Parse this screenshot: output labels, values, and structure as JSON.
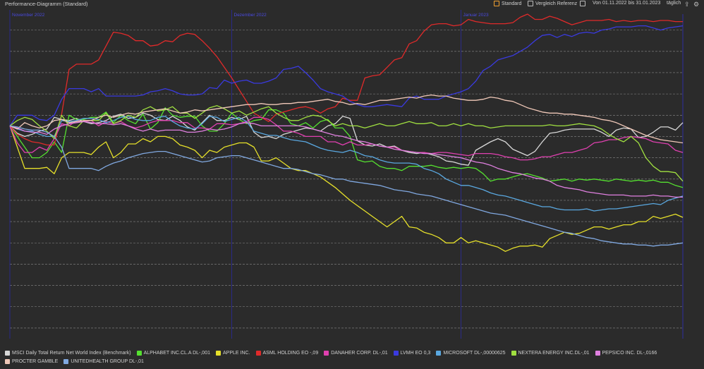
{
  "header": {
    "title": "Performance-Diagramm (Standard)",
    "standard_label": "Standard",
    "compare_label": "Vergleich Referenz",
    "range_label": "Von 01.11.2022 bis 31.01.2023",
    "interval_label": "täglich"
  },
  "icons": {
    "export": "export-icon",
    "settings": "gear-icon",
    "calendar": "calendar-icon"
  },
  "chart_data": {
    "type": "line",
    "x": [
      0,
      1,
      2,
      3,
      4,
      5,
      6,
      7,
      8,
      9,
      10,
      11,
      12,
      13,
      14,
      15,
      16,
      17,
      18,
      19,
      20,
      21,
      22,
      23,
      24,
      25,
      26,
      27,
      28,
      29,
      30,
      31,
      32,
      33,
      34,
      35,
      36,
      37,
      38,
      39,
      40,
      41,
      42,
      43,
      44,
      45,
      46,
      47,
      48,
      49,
      50,
      51,
      52,
      53,
      54,
      55,
      56,
      57,
      58,
      59,
      60,
      61,
      62,
      63,
      64,
      65,
      66,
      67,
      68,
      69,
      70,
      71,
      72,
      73,
      74,
      75,
      76,
      77,
      78,
      79,
      80,
      81,
      82,
      83,
      84,
      85,
      86,
      87,
      88,
      89,
      90,
      91
    ],
    "month_labels": [
      "November 2022",
      "Dezember 2022",
      "Januar 2023"
    ],
    "month_starts": [
      0,
      30,
      61
    ],
    "ylim": [
      -20,
      10.5
    ],
    "grid_y": [
      -19,
      -17,
      -15,
      -13,
      -11,
      -9,
      -7,
      -5,
      -3,
      -1,
      1,
      3,
      5,
      7,
      9
    ],
    "grid": true,
    "series": [
      {
        "name": "MSCI Daily Total Return Net World Index (Benchmark)",
        "color": "#d8d8d8",
        "values": [
          0,
          -0.7,
          -1.0,
          -0.8,
          -0.5,
          -0.3,
          0.8,
          0.6,
          0.5,
          0.7,
          0.4,
          0.2,
          0.3,
          0.5,
          0.9,
          1.1,
          0.7,
          0.8,
          1.2,
          1.0,
          0.6,
          0.5,
          0.9,
          0.5,
          -0.1,
          -0.4,
          0.3,
          1.0,
          0.5,
          0.5,
          0.8,
          0.6,
          0.9,
          -0.6,
          -1.1,
          -1.0,
          -1.2,
          -0.8,
          -0.6,
          -0.4,
          -0.2,
          -0.3,
          -0.5,
          0.0,
          0.2,
          0.9,
          0.7,
          -1.4,
          -1.8,
          -1.9,
          -1.7,
          -2.0,
          -1.9,
          -2.3,
          -2.5,
          -2.6,
          -2.5,
          -2.7,
          -2.9,
          -3.3,
          -3.4,
          -3.6,
          -3.7,
          -2.3,
          -1.9,
          -1.5,
          -1.2,
          -1.5,
          -2.2,
          -2.5,
          -2.8,
          -2.4,
          -1.5,
          -0.7,
          -0.6,
          -0.4,
          -0.3,
          -0.3,
          -0.3,
          -0.3,
          -0.6,
          -1.0,
          -0.4,
          -0.2,
          -0.3,
          -1.1,
          -1.0,
          -0.6,
          -0.1,
          -0.1,
          -0.4,
          0.3
        ]
      },
      {
        "name": "ALPHABET INC.CL.A DL-,001",
        "color": "#55e030",
        "values": [
          0,
          -1.0,
          -2.0,
          -3.0,
          -3.0,
          -2.5,
          -1.5,
          -2.5,
          1.0,
          0.6,
          0.6,
          0.8,
          0.8,
          1.3,
          0.3,
          1.0,
          0.5,
          0.2,
          1.1,
          -0.3,
          0.3,
          1.7,
          1.0,
          0.8,
          0.9,
          0.9,
          0.0,
          -0.5,
          -0.5,
          0.2,
          1.2,
          0.6,
          0.2,
          0.5,
          0.6,
          1.5,
          1.5,
          1.2,
          0.2,
          0.0,
          0.3,
          -0.2,
          0.4,
          0.6,
          -0.2,
          -0.2,
          -1.0,
          -3.2,
          -3.4,
          -3.3,
          -3.8,
          -4.0,
          -4.0,
          -4.2,
          -3.8,
          -3.8,
          -3.8,
          -3.7,
          -3.9,
          -4.0,
          -3.9,
          -4.0,
          -3.9,
          -4.0,
          -4.5,
          -5.2,
          -5.0,
          -5.0,
          -4.8,
          -4.6,
          -4.5,
          -4.7,
          -4.9,
          -5.2,
          -5.1,
          -5.0,
          -5.2,
          -5.0,
          -5.1,
          -5.0,
          -5.1,
          -5.2,
          -5.0,
          -5.1,
          -5.2,
          -5.1,
          -5.2,
          -5.1,
          -5.3,
          -5.3,
          -5.6,
          -5.8
        ]
      },
      {
        "name": "APPLE INC.",
        "color": "#e6e02a",
        "values": [
          0,
          -2.0,
          -4.0,
          -4.0,
          -4.0,
          -3.9,
          -4.5,
          -3.0,
          -2.5,
          -2.5,
          -2.5,
          -2.7,
          -2.0,
          -1.5,
          -3.0,
          -2.5,
          -1.7,
          -1.7,
          -1.2,
          -1.5,
          -1.0,
          -1.0,
          -1.2,
          -1.8,
          -2.0,
          -2.3,
          -3.0,
          -2.3,
          -2.5,
          -2.0,
          -1.8,
          -1.6,
          -1.6,
          -2.0,
          -3.3,
          -3.3,
          -3.0,
          -3.5,
          -4.0,
          -4.2,
          -4.2,
          -4.5,
          -4.8,
          -5.3,
          -5.8,
          -6.4,
          -7.0,
          -7.5,
          -8.0,
          -8.5,
          -9.0,
          -9.5,
          -9.0,
          -8.5,
          -9.5,
          -9.6,
          -10.0,
          -10.2,
          -10.5,
          -11.0,
          -11.0,
          -10.5,
          -11.0,
          -10.8,
          -11.0,
          -11.2,
          -11.4,
          -11.8,
          -11.5,
          -11.3,
          -11.3,
          -11.2,
          -11.4,
          -10.6,
          -10.3,
          -10.0,
          -10.2,
          -10.1,
          -9.8,
          -9.5,
          -9.5,
          -9.7,
          -9.5,
          -9.3,
          -9.3,
          -9.0,
          -9.0,
          -8.5,
          -8.7,
          -8.5,
          -8.3,
          -8.6
        ]
      },
      {
        "name": "ASML HOLDING EO -,09",
        "color": "#e02a2a",
        "values": [
          0,
          -0.8,
          -1.2,
          -1.5,
          -1.6,
          -1.8,
          -1.8,
          1.1,
          5.3,
          5.8,
          5.8,
          5.8,
          6.2,
          7.5,
          8.8,
          8.7,
          8.5,
          8.0,
          8.0,
          7.5,
          7.6,
          8.0,
          7.9,
          8.5,
          8.7,
          8.6,
          8.0,
          7.3,
          6.5,
          5.5,
          4.5,
          3.4,
          2.3,
          1.2,
          0.8,
          0.4,
          1.1,
          1.3,
          1.5,
          1.7,
          1.8,
          1.6,
          1.2,
          1.6,
          1.8,
          2.6,
          2.4,
          2.4,
          4.5,
          4.7,
          4.8,
          5.5,
          6.2,
          6.4,
          7.7,
          8.0,
          8.9,
          9.5,
          9.6,
          9.6,
          9.4,
          9.5,
          10.0,
          9.8,
          9.7,
          9.6,
          9.6,
          9.6,
          9.7,
          10.2,
          10.5,
          10.0,
          10.0,
          10.3,
          10.1,
          9.8,
          9.5,
          9.7,
          9.9,
          9.9,
          9.9,
          10.0,
          9.8,
          9.9,
          9.8,
          9.9,
          9.9,
          9.8,
          9.9,
          9.9,
          9.8,
          9.8
        ]
      },
      {
        "name": "DANAHER CORP. DL-,01",
        "color": "#e040b0",
        "values": [
          0,
          -1.6,
          -2.5,
          -2.5,
          -2.0,
          -2.3,
          -1.2,
          0.2,
          0.0,
          0.5,
          0.4,
          0.5,
          0.0,
          0.4,
          0.2,
          0.4,
          0.0,
          -0.2,
          0.0,
          0.3,
          0.5,
          0.5,
          0.5,
          0.3,
          0.3,
          -0.2,
          -0.2,
          -0.3,
          0.2,
          0.2,
          0.1,
          0.2,
          0.4,
          0.8,
          0.8,
          0.6,
          0.1,
          -0.5,
          -0.5,
          -0.7,
          -1.0,
          -1.0,
          -1.0,
          -1.5,
          -1.5,
          -1.8,
          -1.5,
          -1.8,
          -1.8,
          -1.7,
          -1.9,
          -2.0,
          -2.0,
          -2.3,
          -2.4,
          -2.5,
          -2.5,
          -2.6,
          -2.5,
          -2.5,
          -2.6,
          -2.7,
          -2.8,
          -2.6,
          -2.6,
          -2.6,
          -2.7,
          -2.9,
          -3.0,
          -3.2,
          -3.2,
          -3.1,
          -2.9,
          -2.9,
          -2.7,
          -2.5,
          -2.5,
          -2.3,
          -2.1,
          -1.6,
          -1.5,
          -1.3,
          -1.3,
          -1.1,
          -1.0,
          -1.1,
          -1.2,
          -1.5,
          -1.6,
          -1.7,
          -2.3,
          -2.5
        ]
      },
      {
        "name": "LVMH EO 0,3",
        "color": "#3a3ae0",
        "values": [
          0,
          1.0,
          1.0,
          1.0,
          0.6,
          0.5,
          1.0,
          2.5,
          3.5,
          3.5,
          3.5,
          3.2,
          3.5,
          2.8,
          2.8,
          2.8,
          2.8,
          2.8,
          2.9,
          3.2,
          3.3,
          3.5,
          3.3,
          3.0,
          2.9,
          2.9,
          3.0,
          3.6,
          3.5,
          4.3,
          4.0,
          4.2,
          4.3,
          4.0,
          4.0,
          4.2,
          4.5,
          5.3,
          5.4,
          5.6,
          5.0,
          4.3,
          3.5,
          3.2,
          3.0,
          2.8,
          2.3,
          2.0,
          1.8,
          1.8,
          1.9,
          2.0,
          1.9,
          1.8,
          2.6,
          2.8,
          2.5,
          2.5,
          2.5,
          2.8,
          3.0,
          3.2,
          3.5,
          4.2,
          5.2,
          5.6,
          6.2,
          6.4,
          6.6,
          7.0,
          7.4,
          8.0,
          8.5,
          8.6,
          8.3,
          8.6,
          8.4,
          8.7,
          8.8,
          8.7,
          9.0,
          9.1,
          9.3,
          9.3,
          9.3,
          9.4,
          9.4,
          9.2,
          9.0,
          9.2,
          9.3,
          9.4
        ]
      },
      {
        "name": "MICROSOFT DL-,00000625",
        "color": "#5aa8e0",
        "values": [
          0,
          -0.3,
          -0.5,
          -0.5,
          -0.8,
          -1.0,
          -1.0,
          0.5,
          0.4,
          0.5,
          0.7,
          0.7,
          0.6,
          0.3,
          0.5,
          0.8,
          0.9,
          0.6,
          0.5,
          0.5,
          0.8,
          0.9,
          0.4,
          0.0,
          -0.2,
          -0.3,
          0.2,
          0.9,
          0.8,
          0.4,
          0.6,
          0.8,
          0.4,
          -0.5,
          -0.7,
          -0.9,
          -0.9,
          -1.1,
          -1.3,
          -1.4,
          -1.5,
          -1.8,
          -2.1,
          -2.3,
          -2.4,
          -2.5,
          -2.3,
          -2.5,
          -2.8,
          -2.9,
          -3.2,
          -3.4,
          -3.5,
          -3.5,
          -3.5,
          -3.6,
          -4.0,
          -4.2,
          -4.5,
          -5.0,
          -5.3,
          -5.6,
          -5.6,
          -5.8,
          -6.0,
          -6.3,
          -6.5,
          -6.6,
          -6.8,
          -7.0,
          -7.2,
          -7.4,
          -7.6,
          -7.6,
          -7.8,
          -7.9,
          -7.9,
          -7.9,
          -7.8,
          -8.0,
          -7.9,
          -7.8,
          -7.8,
          -7.7,
          -7.6,
          -7.5,
          -7.4,
          -7.3,
          -7.4,
          -7.0,
          -6.8,
          -6.6
        ]
      },
      {
        "name": "NEXTERA ENERGY INC.DL-,01",
        "color": "#a0e040",
        "values": [
          0,
          0.5,
          0.8,
          0.6,
          0.0,
          -0.5,
          -1.2,
          1.0,
          0.0,
          -0.2,
          0.5,
          0.5,
          0.5,
          1.2,
          0.2,
          0.5,
          1.0,
          0.8,
          1.5,
          1.8,
          1.4,
          1.5,
          1.8,
          1.2,
          1.2,
          0.7,
          1.2,
          1.7,
          1.9,
          1.6,
          1.2,
          1.4,
          1.0,
          1.3,
          1.6,
          1.8,
          1.2,
          0.8,
          0.5,
          0.5,
          0.8,
          1.0,
          0.9,
          0.5,
          0.0,
          0.2,
          0.0,
          0.0,
          -0.2,
          0.0,
          0.2,
          0.0,
          0.0,
          0.2,
          0.4,
          0.2,
          0.2,
          0.3,
          0.0,
          0.0,
          0.2,
          0.0,
          0.2,
          0.0,
          0.0,
          -0.2,
          -0.1,
          0.0,
          0.0,
          0.0,
          0.0,
          0.0,
          0.0,
          0.1,
          0.0,
          0.0,
          0.1,
          0.2,
          0.1,
          0.0,
          -0.3,
          -0.8,
          -1.2,
          -1.5,
          -1.0,
          -1.6,
          -3.0,
          -3.8,
          -4.3,
          -4.3,
          -4.4,
          -5.2
        ]
      },
      {
        "name": "PEPSICO INC. DL-,0166",
        "color": "#e080e0",
        "values": [
          0,
          -0.2,
          -0.5,
          -0.6,
          -0.6,
          -0.8,
          -0.3,
          0.0,
          0.2,
          0.3,
          0.4,
          0.3,
          0.2,
          0.2,
          0.1,
          0.2,
          0.0,
          -0.3,
          -0.5,
          -0.3,
          -0.5,
          -0.4,
          -0.4,
          -0.4,
          -0.6,
          -0.6,
          -0.5,
          -0.3,
          -0.4,
          -0.3,
          -0.1,
          0.2,
          0.3,
          0.2,
          0.0,
          0.0,
          0.0,
          0.0,
          0.0,
          0.0,
          -0.1,
          -0.3,
          -0.5,
          -0.7,
          -0.9,
          -1.0,
          -1.2,
          -1.4,
          -1.5,
          -1.7,
          -1.9,
          -2.0,
          -2.2,
          -2.3,
          -2.4,
          -2.5,
          -2.6,
          -2.6,
          -2.7,
          -2.8,
          -2.9,
          -3.0,
          -3.2,
          -3.4,
          -3.5,
          -3.7,
          -4.0,
          -4.2,
          -4.4,
          -4.5,
          -4.7,
          -4.9,
          -5.0,
          -5.2,
          -5.6,
          -5.8,
          -5.9,
          -6.0,
          -6.2,
          -6.3,
          -6.4,
          -6.5,
          -6.5,
          -6.5,
          -6.6,
          -6.6,
          -6.6,
          -6.5,
          -6.6,
          -6.6,
          -6.7,
          -6.7
        ]
      },
      {
        "name": "PROCTER GAMBLE",
        "color": "#f0c8b8",
        "values": [
          0,
          -0.3,
          0.3,
          0.0,
          -0.2,
          0.0,
          0.5,
          0.6,
          0.3,
          0.4,
          0.5,
          0.5,
          0.8,
          1.0,
          0.8,
          1.0,
          1.2,
          1.1,
          1.3,
          1.4,
          1.5,
          1.6,
          1.4,
          1.2,
          1.3,
          1.5,
          1.4,
          1.5,
          1.6,
          1.7,
          1.8,
          1.9,
          2.0,
          2.0,
          2.1,
          2.0,
          2.0,
          2.1,
          2.1,
          2.2,
          2.2,
          2.3,
          2.4,
          2.5,
          2.3,
          2.2,
          2.0,
          2.1,
          2.0,
          2.2,
          2.4,
          2.4,
          2.5,
          2.6,
          2.7,
          2.6,
          2.8,
          2.9,
          2.8,
          2.8,
          2.6,
          2.5,
          2.4,
          2.4,
          2.5,
          2.7,
          2.6,
          2.4,
          2.3,
          2.0,
          1.7,
          1.5,
          1.3,
          1.2,
          1.2,
          1.1,
          1.1,
          1.0,
          0.9,
          0.8,
          0.6,
          0.5,
          0.3,
          0.0,
          -0.3,
          -0.6,
          -0.9,
          -1.1,
          -1.3,
          -1.4,
          -1.5,
          -1.6
        ]
      },
      {
        "name": "UNITEDHEALTH GROUP DL-,01",
        "color": "#80a8e0",
        "values": [
          0,
          -0.1,
          -0.3,
          -0.4,
          -0.4,
          -0.6,
          -1.0,
          -2.0,
          -4.0,
          -4.0,
          -4.0,
          -4.0,
          -4.2,
          -3.8,
          -3.5,
          -3.3,
          -3.0,
          -2.8,
          -2.6,
          -2.5,
          -2.4,
          -2.4,
          -2.6,
          -2.8,
          -3.0,
          -3.2,
          -3.4,
          -3.3,
          -3.0,
          -2.9,
          -2.8,
          -2.8,
          -3.0,
          -3.2,
          -3.4,
          -3.6,
          -3.8,
          -4.0,
          -4.0,
          -4.1,
          -4.3,
          -4.5,
          -4.6,
          -4.8,
          -5.0,
          -5.0,
          -5.2,
          -5.3,
          -5.4,
          -5.5,
          -5.6,
          -5.8,
          -6.0,
          -6.1,
          -6.2,
          -6.4,
          -6.5,
          -6.6,
          -6.8,
          -7.0,
          -7.2,
          -7.4,
          -7.6,
          -7.8,
          -8.0,
          -8.2,
          -8.3,
          -8.4,
          -8.6,
          -8.8,
          -9.0,
          -9.2,
          -9.4,
          -9.6,
          -9.8,
          -10.0,
          -10.1,
          -10.3,
          -10.5,
          -10.6,
          -10.8,
          -10.9,
          -11.0,
          -11.1,
          -11.1,
          -11.2,
          -11.2,
          -11.3,
          -11.2,
          -11.2,
          -11.1,
          -11.0
        ]
      }
    ]
  },
  "legend_extra": {
    "asml_tail": "EO -,09",
    "danaher_tail": "DL-,01",
    "lvmh_tail": "EO 0,3",
    "msft_tail": "DL-,00000625",
    "pep_tail": "DL-,0166"
  }
}
